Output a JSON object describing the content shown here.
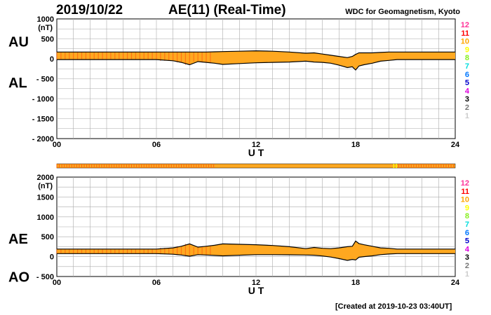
{
  "header": {
    "date": "2019/10/22",
    "title": "AE(11) (Real-Time)",
    "credit": "WDC for Geomagnetism, Kyoto"
  },
  "footer": {
    "created": "[Created at 2019-10-23 03:40UT]"
  },
  "colors": {
    "fill_main": "#FFA820",
    "fill_alt": "#FF6010",
    "trace": "#000000",
    "grid": "#AAAAAA"
  },
  "station_count_legend": [
    {
      "value": "12",
      "color": "#FF3399"
    },
    {
      "value": "11",
      "color": "#FF0000"
    },
    {
      "value": "10",
      "color": "#FFA500"
    },
    {
      "value": "9",
      "color": "#FFFF00"
    },
    {
      "value": "8",
      "color": "#88EE22"
    },
    {
      "value": "7",
      "color": "#00DDDD"
    },
    {
      "value": "6",
      "color": "#0077FF"
    },
    {
      "value": "5",
      "color": "#0000CC"
    },
    {
      "value": "4",
      "color": "#DD00DD"
    },
    {
      "value": "3",
      "color": "#000000"
    },
    {
      "value": "2",
      "color": "#777777"
    },
    {
      "value": "1",
      "color": "#CCCCCC"
    }
  ],
  "chart_data": [
    {
      "type": "area",
      "panel": "AU/AL",
      "upper_label": "AU",
      "lower_label": "AL",
      "ylabel": "(nT)",
      "ylim": [
        -2000,
        1000
      ],
      "yticks": [
        "1000",
        "500",
        "0",
        "- 500",
        "- 1000",
        "- 1500",
        "- 2000"
      ],
      "ytick_values": [
        1000,
        500,
        0,
        -500,
        -1000,
        -1500,
        -2000
      ],
      "xlabel": "U T",
      "xlim": [
        0,
        24
      ],
      "xticks": [
        "00",
        "06",
        "12",
        "18",
        "24"
      ],
      "xtick_values": [
        0,
        6,
        12,
        18,
        24
      ],
      "grid": true,
      "x": [
        0,
        1,
        2,
        3,
        4,
        5,
        6,
        7,
        7.5,
        8,
        8.5,
        9,
        9.5,
        10,
        11,
        12,
        13,
        14,
        15,
        15.5,
        16,
        16.5,
        17,
        17.5,
        17.8,
        18,
        18.2,
        18.5,
        19,
        19.5,
        20,
        20.5,
        21,
        22,
        23,
        24
      ],
      "series": [
        {
          "name": "AU",
          "values": [
            170,
            170,
            170,
            170,
            170,
            170,
            170,
            170,
            170,
            170,
            170,
            170,
            175,
            180,
            190,
            200,
            190,
            170,
            140,
            150,
            120,
            90,
            60,
            30,
            60,
            110,
            150,
            150,
            150,
            160,
            170,
            170,
            170,
            170,
            170,
            170
          ]
        },
        {
          "name": "AL",
          "values": [
            -20,
            -20,
            -20,
            -20,
            -20,
            -20,
            -20,
            -50,
            -90,
            -150,
            -70,
            -90,
            -110,
            -140,
            -120,
            -100,
            -90,
            -80,
            -60,
            -80,
            -90,
            -110,
            -160,
            -220,
            -200,
            -280,
            -180,
            -150,
            -110,
            -60,
            -40,
            -20,
            -20,
            -20,
            -20,
            -20
          ]
        }
      ]
    },
    {
      "type": "area",
      "panel": "AE/AO",
      "upper_label": "AE",
      "lower_label": "AO",
      "ylabel": "(nT)",
      "ylim": [
        -500,
        2000
      ],
      "yticks": [
        "2000",
        "1500",
        "1000",
        "500",
        "0",
        "- 500"
      ],
      "ytick_values": [
        2000,
        1500,
        1000,
        500,
        0,
        -500
      ],
      "xlabel": "U T",
      "xlim": [
        0,
        24
      ],
      "xticks": [
        "00",
        "06",
        "12",
        "18",
        "24"
      ],
      "xtick_values": [
        0,
        6,
        12,
        18,
        24
      ],
      "grid": true,
      "x": [
        0,
        1,
        2,
        3,
        4,
        5,
        6,
        7,
        7.5,
        8,
        8.5,
        9,
        9.5,
        10,
        11,
        12,
        13,
        14,
        15,
        15.5,
        16,
        16.5,
        17,
        17.5,
        17.8,
        18,
        18.2,
        18.5,
        19,
        19.5,
        20,
        20.5,
        21,
        22,
        23,
        24
      ],
      "series": [
        {
          "name": "AE",
          "values": [
            190,
            190,
            190,
            190,
            190,
            190,
            190,
            220,
            260,
            320,
            240,
            260,
            285,
            320,
            310,
            300,
            280,
            250,
            200,
            230,
            210,
            200,
            220,
            250,
            260,
            390,
            330,
            300,
            260,
            220,
            210,
            190,
            190,
            190,
            190,
            190
          ]
        },
        {
          "name": "AO",
          "values": [
            75,
            75,
            75,
            75,
            75,
            75,
            75,
            60,
            40,
            10,
            50,
            40,
            30,
            20,
            35,
            50,
            50,
            45,
            40,
            35,
            15,
            -10,
            -50,
            -95,
            -70,
            -85,
            -15,
            0,
            20,
            50,
            65,
            75,
            75,
            75,
            75,
            75
          ]
        }
      ]
    }
  ]
}
